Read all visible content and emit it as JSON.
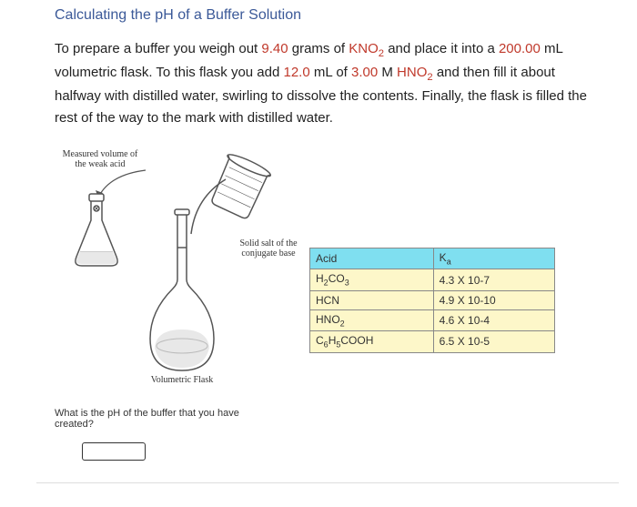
{
  "title": "Calculating the pH of a Buffer Solution",
  "problem": {
    "line1a": "To prepare a buffer you weigh out ",
    "mass": "9.40",
    "line1b": " grams of ",
    "salt": "KNO",
    "salt_sub": "2",
    "line1c": " and place it into a ",
    "volume": "200.00",
    "line1d": " mL volumetric flask. To this flask you add ",
    "acid_vol": "12.0",
    "line1e": " mL of ",
    "acid_conc": "3.00",
    "line1f": " M ",
    "acid": "HNO",
    "acid_sub": "2",
    "line1g": " and then fill it about halfway with distilled water, swirling to dissolve the contents. Finally, the flask is filled the rest of the way to the mark with distilled water."
  },
  "diagram_labels": {
    "measured": "Measured volume of\nthe weak acid",
    "solid": "Solid salt of the\nconjugate base",
    "flask": "Volumetric Flask"
  },
  "table": {
    "header_acid": "Acid",
    "header_ka": "K",
    "header_ka_sub": "a",
    "rows": [
      {
        "acid_html": "H<sub>2</sub>CO<sub>3</sub>",
        "ka": "4.3 X 10-7"
      },
      {
        "acid_html": "HCN",
        "ka": "4.9 X 10-10"
      },
      {
        "acid_html": "HNO<sub>2</sub>",
        "ka": "4.6 X 10-4"
      },
      {
        "acid_html": "C<sub>6</sub>H<sub>5</sub>COOH",
        "ka": "6.5 X 10-5"
      }
    ]
  },
  "question": "What is the pH of the buffer that you have created?",
  "colors": {
    "title": "#3b5998",
    "highlight": "#c0392b",
    "table_header_bg": "#7fdff0",
    "table_cell_bg": "#fdf7c9",
    "border": "#888888"
  }
}
